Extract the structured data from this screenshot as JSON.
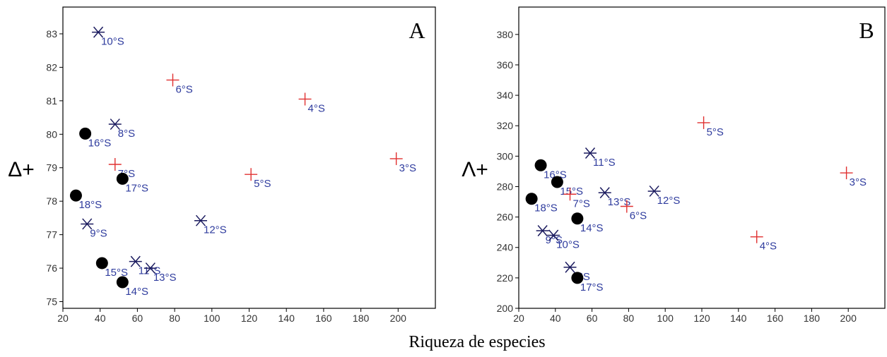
{
  "x_axis_title": "Riqueza de especies",
  "chart_data": [
    {
      "type": "scatter",
      "panel": "A",
      "ylabel": "Δ+",
      "xlim": [
        20,
        220
      ],
      "ylim": [
        74.8,
        83.8
      ],
      "x_ticks": [
        20,
        40,
        60,
        80,
        100,
        120,
        140,
        160,
        180,
        200
      ],
      "y_ticks": [
        75,
        76,
        77,
        78,
        79,
        80,
        81,
        82,
        83
      ],
      "marker_colors": {
        "plus": "#e03030",
        "asterisk": "#1a1a5e",
        "dot": "#000000"
      },
      "points": [
        {
          "x": 39,
          "y": 83.05,
          "label": "10°S",
          "marker": "asterisk"
        },
        {
          "x": 79,
          "y": 81.62,
          "label": "6°S",
          "marker": "plus"
        },
        {
          "x": 150,
          "y": 81.05,
          "label": "4°S",
          "marker": "plus"
        },
        {
          "x": 48,
          "y": 80.3,
          "label": "8°S",
          "marker": "asterisk"
        },
        {
          "x": 32,
          "y": 80.02,
          "label": "16°S",
          "marker": "dot"
        },
        {
          "x": 48,
          "y": 79.1,
          "label": "7°S",
          "marker": "plus"
        },
        {
          "x": 199,
          "y": 79.27,
          "label": "3°S",
          "marker": "plus"
        },
        {
          "x": 121,
          "y": 78.8,
          "label": "5°S",
          "marker": "plus"
        },
        {
          "x": 52,
          "y": 78.67,
          "label": "17°S",
          "marker": "dot"
        },
        {
          "x": 27,
          "y": 78.17,
          "label": "18°S",
          "marker": "dot"
        },
        {
          "x": 94,
          "y": 77.42,
          "label": "12°S",
          "marker": "asterisk"
        },
        {
          "x": 33,
          "y": 77.32,
          "label": "9°S",
          "marker": "asterisk"
        },
        {
          "x": 59,
          "y": 76.2,
          "label": "11°S",
          "marker": "asterisk"
        },
        {
          "x": 67,
          "y": 76.0,
          "label": "13°S",
          "marker": "asterisk"
        },
        {
          "x": 41,
          "y": 76.15,
          "label": "15°S",
          "marker": "dot"
        },
        {
          "x": 52,
          "y": 75.58,
          "label": "14°S",
          "marker": "dot"
        }
      ]
    },
    {
      "type": "scatter",
      "panel": "B",
      "ylabel": "Λ+",
      "xlim": [
        20,
        220
      ],
      "ylim": [
        200,
        398
      ],
      "x_ticks": [
        20,
        40,
        60,
        80,
        100,
        120,
        140,
        160,
        180,
        200
      ],
      "y_ticks": [
        200,
        220,
        240,
        260,
        280,
        300,
        320,
        340,
        360,
        380
      ],
      "marker_colors": {
        "plus": "#e03030",
        "asterisk": "#1a1a5e",
        "dot": "#000000"
      },
      "points": [
        {
          "x": 121,
          "y": 322,
          "label": "5°S",
          "marker": "plus"
        },
        {
          "x": 59,
          "y": 302,
          "label": "11°S",
          "marker": "asterisk"
        },
        {
          "x": 32,
          "y": 294,
          "label": "16°S",
          "marker": "dot"
        },
        {
          "x": 199,
          "y": 289,
          "label": "3°S",
          "marker": "plus"
        },
        {
          "x": 41,
          "y": 283,
          "label": "15°S",
          "marker": "dot"
        },
        {
          "x": 94,
          "y": 277,
          "label": "12°S",
          "marker": "asterisk"
        },
        {
          "x": 67,
          "y": 276,
          "label": "13°S",
          "marker": "asterisk"
        },
        {
          "x": 48,
          "y": 275,
          "label": "7°S",
          "marker": "plus"
        },
        {
          "x": 27,
          "y": 272,
          "label": "18°S",
          "marker": "dot"
        },
        {
          "x": 79,
          "y": 267,
          "label": "6°S",
          "marker": "plus"
        },
        {
          "x": 52,
          "y": 259,
          "label": "14°S",
          "marker": "dot"
        },
        {
          "x": 33,
          "y": 251,
          "label": "9°S",
          "marker": "asterisk"
        },
        {
          "x": 39,
          "y": 248,
          "label": "10°S",
          "marker": "asterisk"
        },
        {
          "x": 150,
          "y": 247,
          "label": "4°S",
          "marker": "plus"
        },
        {
          "x": 48,
          "y": 227,
          "label": "8°S",
          "marker": "asterisk"
        },
        {
          "x": 52,
          "y": 220,
          "label": "17°S",
          "marker": "dot"
        }
      ]
    }
  ]
}
